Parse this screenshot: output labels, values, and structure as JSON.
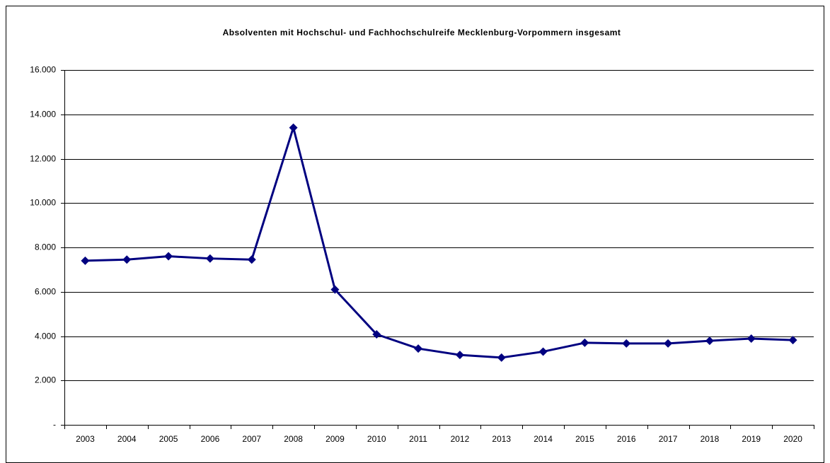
{
  "chart_data": {
    "type": "line",
    "title": "Absolventen mit Hochschul- und Fachhochschulreife Mecklenburg-Vorpommern insgesamt",
    "categories": [
      "2003",
      "2004",
      "2005",
      "2006",
      "2007",
      "2008",
      "2009",
      "2010",
      "2011",
      "2012",
      "2013",
      "2014",
      "2015",
      "2016",
      "2017",
      "2018",
      "2019",
      "2020"
    ],
    "series": [
      {
        "name": "insgesamt",
        "color": "#000080",
        "values": [
          7400,
          7450,
          7600,
          7500,
          7450,
          13400,
          6100,
          4080,
          3440,
          3150,
          3030,
          3300,
          3700,
          3670,
          3670,
          3790,
          3890,
          3820
        ]
      }
    ],
    "ylim": [
      0,
      16000
    ],
    "yticks": [
      {
        "value": 0,
        "label": "-"
      },
      {
        "value": 2000,
        "label": "2.000"
      },
      {
        "value": 4000,
        "label": "4.000"
      },
      {
        "value": 6000,
        "label": "6.000"
      },
      {
        "value": 8000,
        "label": "8.000"
      },
      {
        "value": 10000,
        "label": "10.000"
      },
      {
        "value": 12000,
        "label": "12.000"
      },
      {
        "value": 14000,
        "label": "14.000"
      },
      {
        "value": 16000,
        "label": "16.000"
      }
    ],
    "grid": true
  }
}
